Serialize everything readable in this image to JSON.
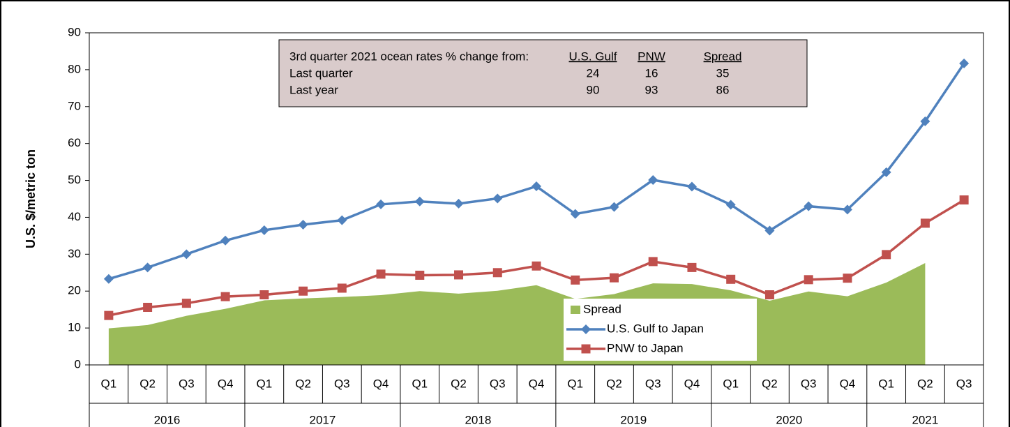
{
  "chart_data": {
    "type": "line",
    "y_label": "U.S. $/metric ton",
    "categories": [
      "Q1",
      "Q2",
      "Q3",
      "Q4",
      "Q1",
      "Q2",
      "Q3",
      "Q4",
      "Q1",
      "Q2",
      "Q3",
      "Q4",
      "Q1",
      "Q2",
      "Q3",
      "Q4",
      "Q1",
      "Q2",
      "Q3",
      "Q4",
      "Q1",
      "Q2",
      "Q3"
    ],
    "years": [
      "2016",
      "2017",
      "2018",
      "2019",
      "2020",
      "2021"
    ],
    "ylim": [
      0,
      90
    ],
    "yticks": [
      0,
      10,
      20,
      30,
      40,
      50,
      60,
      70,
      80,
      90
    ],
    "series": [
      {
        "name": "Spread",
        "kind": "area",
        "color": "#9bbb59",
        "values": [
          9.9,
          10.8,
          13.3,
          15.2,
          17.5,
          18,
          18.4,
          18.9,
          20,
          19.3,
          20.1,
          21.6,
          17.9,
          19.2,
          22.1,
          21.9,
          20.2,
          17.4,
          19.9,
          18.6,
          22.3,
          27.6,
          null
        ]
      },
      {
        "name": "U.S. Gulf to Japan",
        "kind": "line",
        "marker": "diamond",
        "color": "#4f81bd",
        "values": [
          23.3,
          26.4,
          30,
          33.7,
          36.5,
          38,
          39.2,
          43.5,
          44.3,
          43.7,
          45.1,
          48.4,
          40.9,
          42.8,
          50.1,
          48.3,
          43.4,
          36.4,
          43,
          42.1,
          52.2,
          66,
          81.7
        ]
      },
      {
        "name": "PNW to Japan",
        "kind": "line",
        "marker": "square",
        "color": "#c0504d",
        "values": [
          13.4,
          15.6,
          16.7,
          18.5,
          19,
          20,
          20.8,
          24.6,
          24.3,
          24.4,
          25,
          26.8,
          23,
          23.6,
          28,
          26.4,
          23.2,
          19,
          23.1,
          23.5,
          29.9,
          38.4,
          44.7
        ]
      }
    ],
    "table": {
      "header": [
        "3rd quarter 2021 ocean rates % change from:",
        "U.S. Gulf",
        "PNW",
        "Spread"
      ],
      "rows": [
        [
          "Last quarter",
          24,
          16,
          35
        ],
        [
          "Last year",
          90,
          93,
          86
        ]
      ]
    }
  }
}
